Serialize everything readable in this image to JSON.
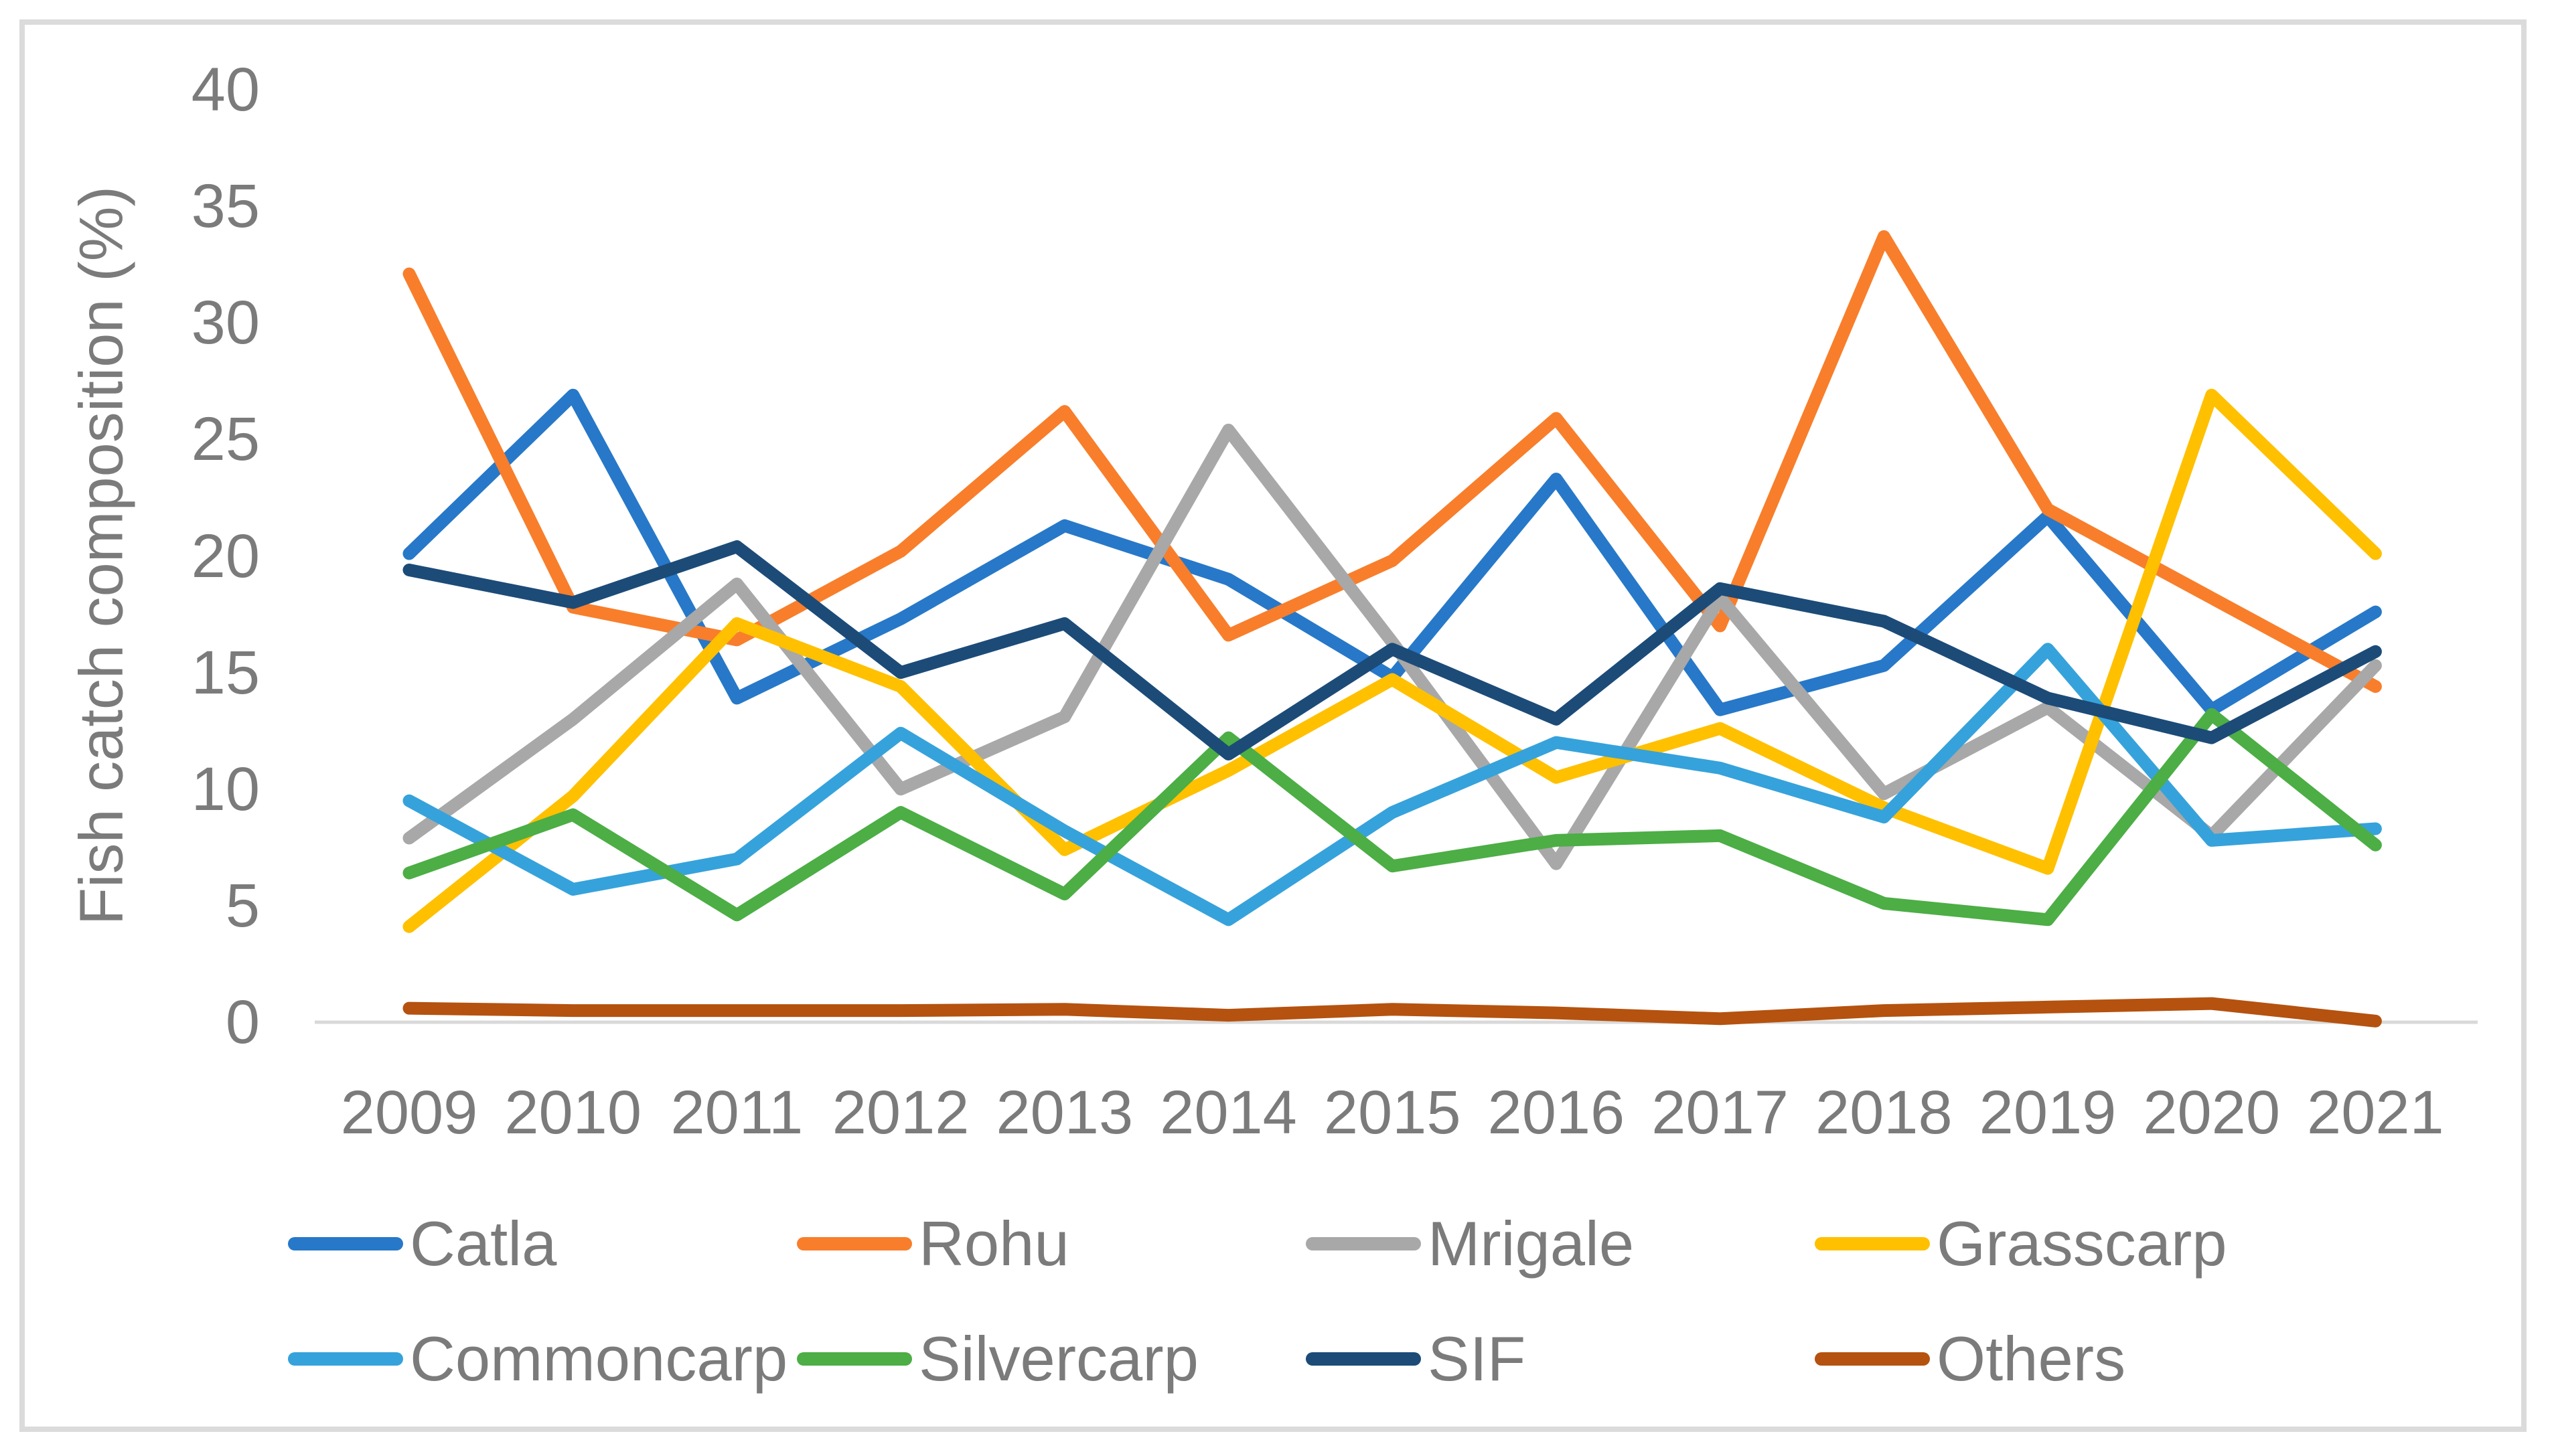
{
  "chart_data": {
    "type": "line",
    "title": "",
    "xlabel": "",
    "ylabel": "Fish catch composition (%)",
    "categories": [
      "2009",
      "2010",
      "2011",
      "2012",
      "2013",
      "2014",
      "2015",
      "2016",
      "2017",
      "2018",
      "2019",
      "2020",
      "2021"
    ],
    "ylim": [
      0,
      40
    ],
    "yticks": [
      0,
      5,
      10,
      15,
      20,
      25,
      30,
      35,
      40
    ],
    "grid": false,
    "legend_position": "bottom",
    "axis_text_color": "#7b7b7b",
    "axis_line_color": "#d9d9d9",
    "series": [
      {
        "name": "Catla",
        "color": "#2778C8",
        "values": [
          20.1,
          26.9,
          13.9,
          17.3,
          21.3,
          19.0,
          14.8,
          23.3,
          13.4,
          15.3,
          21.7,
          13.4,
          17.6
        ]
      },
      {
        "name": "Rohu",
        "color": "#F87E2B",
        "values": [
          32.1,
          17.8,
          16.4,
          20.2,
          26.2,
          16.6,
          19.8,
          25.9,
          17.0,
          33.7,
          22.0,
          18.2,
          14.4
        ]
      },
      {
        "name": "Mrigale",
        "color": "#A8A8A8",
        "values": [
          7.9,
          13.0,
          18.8,
          10.0,
          13.1,
          25.4,
          16.3,
          6.8,
          18.2,
          9.8,
          13.5,
          8.0,
          15.3
        ]
      },
      {
        "name": "Grasscarp",
        "color": "#FFC000",
        "values": [
          4.1,
          9.7,
          17.1,
          14.4,
          7.4,
          10.8,
          14.7,
          10.5,
          12.6,
          9.2,
          6.6,
          26.9,
          20.1
        ]
      },
      {
        "name": "Commoncarp",
        "color": "#36A2DB",
        "values": [
          9.5,
          5.7,
          7.0,
          12.4,
          8.2,
          4.4,
          9.0,
          12.0,
          10.9,
          8.8,
          16.0,
          7.8,
          8.3
        ]
      },
      {
        "name": "Silvercarp",
        "color": "#4CAE45",
        "values": [
          6.4,
          8.9,
          4.6,
          9.0,
          5.5,
          12.2,
          6.7,
          7.8,
          8.0,
          5.1,
          4.4,
          13.2,
          7.6
        ]
      },
      {
        "name": "SIF",
        "color": "#1C4B78",
        "values": [
          19.4,
          18.0,
          20.4,
          15.0,
          17.1,
          11.5,
          16.0,
          13.0,
          18.6,
          17.2,
          13.9,
          12.2,
          15.9
        ]
      },
      {
        "name": "Others",
        "color": "#B5520F",
        "values": [
          0.6,
          0.5,
          0.5,
          0.5,
          0.55,
          0.3,
          0.55,
          0.4,
          0.15,
          0.5,
          0.65,
          0.8,
          0.05
        ]
      }
    ]
  }
}
